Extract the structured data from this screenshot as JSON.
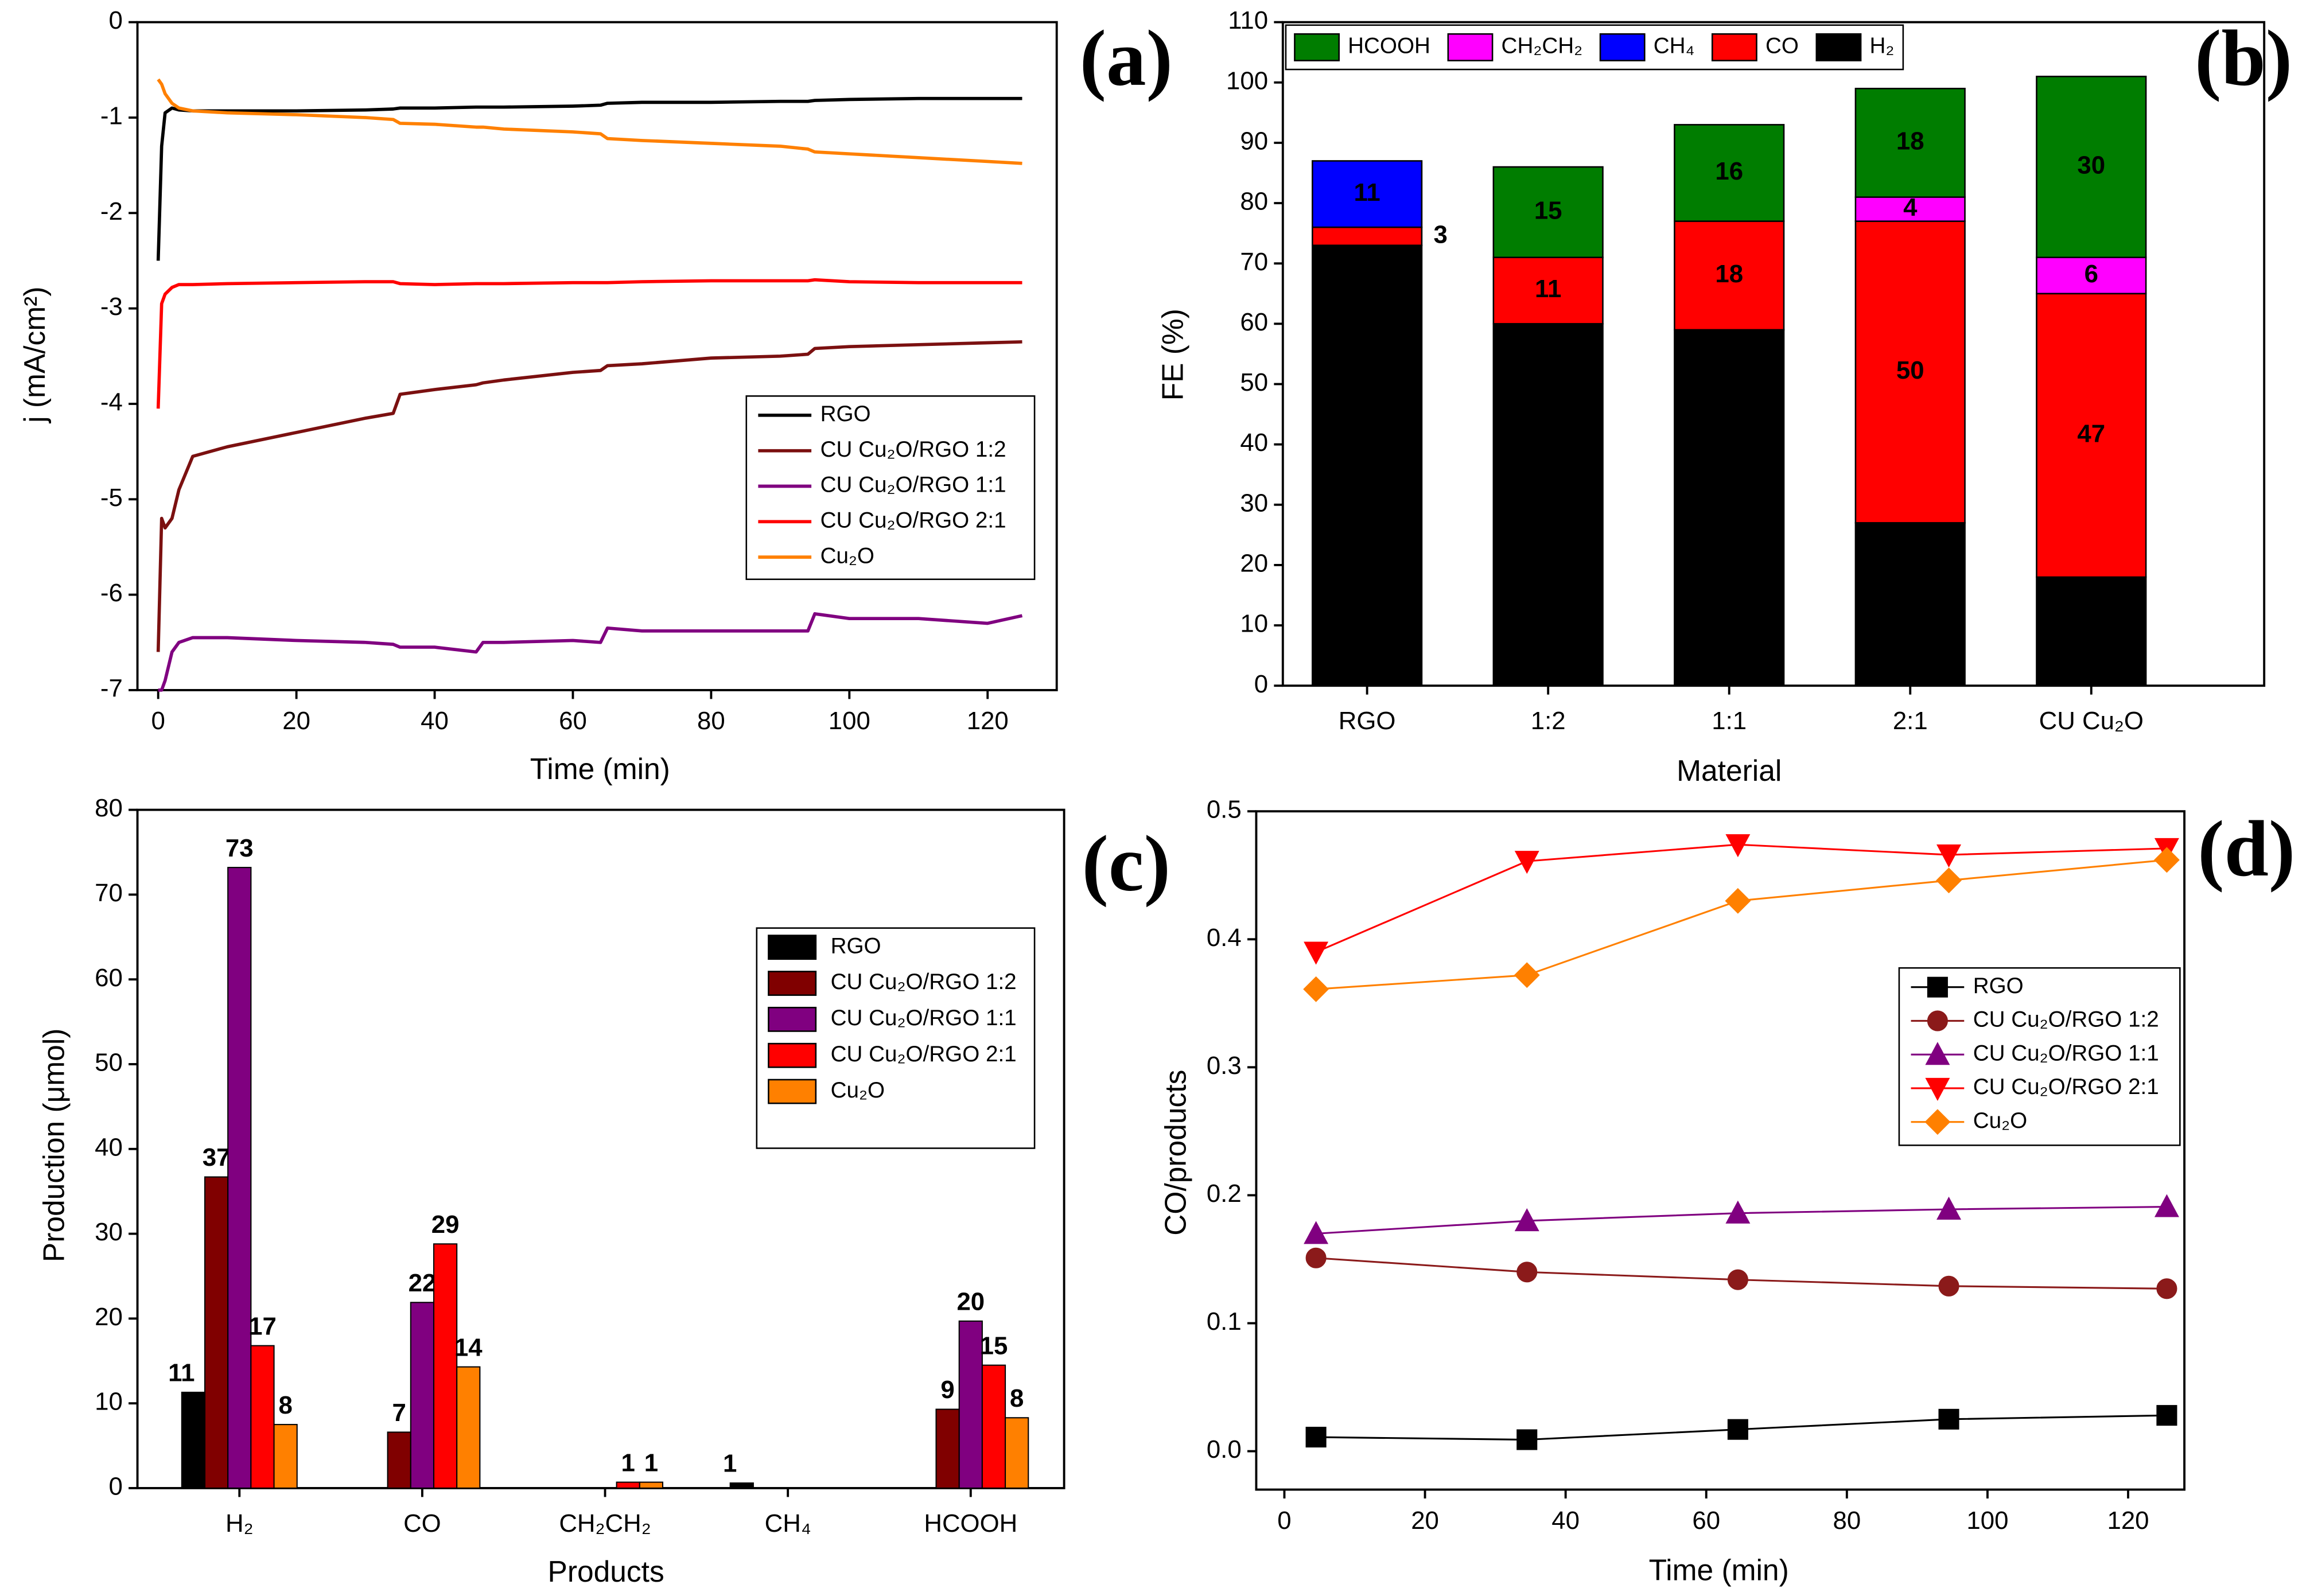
{
  "chart_data": [
    {
      "type": "line",
      "panel_label": "(a)",
      "xlabel": "Time (min)",
      "ylabel": "j (mA/cm²)",
      "x": [
        0,
        0.5,
        1,
        2,
        3,
        5,
        10,
        20,
        30,
        34,
        35,
        40,
        46,
        47,
        50,
        60,
        64,
        65,
        70,
        80,
        90,
        94,
        95,
        100,
        110,
        120,
        125
      ],
      "series": [
        {
          "name": "RGO",
          "color": "#000000",
          "values": [
            -2.5,
            -1.3,
            -0.95,
            -0.9,
            -0.92,
            -0.93,
            -0.93,
            -0.93,
            -0.92,
            -0.91,
            -0.9,
            -0.9,
            -0.89,
            -0.89,
            -0.89,
            -0.88,
            -0.87,
            -0.85,
            -0.84,
            -0.84,
            -0.83,
            -0.83,
            -0.82,
            -0.81,
            -0.8,
            -0.8,
            -0.8
          ]
        },
        {
          "name": "CU Cu₂O/RGO 1:2",
          "color": "#7b1010",
          "values": [
            -6.6,
            -5.2,
            -5.3,
            -5.2,
            -4.9,
            -4.55,
            -4.45,
            -4.3,
            -4.15,
            -4.1,
            -3.9,
            -3.85,
            -3.8,
            -3.78,
            -3.75,
            -3.67,
            -3.65,
            -3.6,
            -3.58,
            -3.52,
            -3.5,
            -3.48,
            -3.42,
            -3.4,
            -3.38,
            -3.36,
            -3.35
          ]
        },
        {
          "name": "CU Cu₂O/RGO 1:1",
          "color": "#800080",
          "values": [
            -7,
            -7,
            -6.9,
            -6.6,
            -6.5,
            -6.45,
            -6.45,
            -6.48,
            -6.5,
            -6.52,
            -6.55,
            -6.55,
            -6.6,
            -6.5,
            -6.5,
            -6.48,
            -6.5,
            -6.35,
            -6.38,
            -6.38,
            -6.38,
            -6.38,
            -6.2,
            -6.25,
            -6.25,
            -6.3,
            -6.22
          ]
        },
        {
          "name": "CU Cu₂O/RGO 2:1",
          "color": "#ff0000",
          "values": [
            -4.05,
            -2.95,
            -2.85,
            -2.78,
            -2.75,
            -2.75,
            -2.74,
            -2.73,
            -2.72,
            -2.72,
            -2.74,
            -2.75,
            -2.74,
            -2.74,
            -2.74,
            -2.73,
            -2.73,
            -2.73,
            -2.72,
            -2.71,
            -2.71,
            -2.71,
            -2.7,
            -2.72,
            -2.73,
            -2.73,
            -2.73
          ]
        },
        {
          "name": "Cu₂O",
          "color": "#ff8000",
          "values": [
            -0.6,
            -0.65,
            -0.75,
            -0.85,
            -0.9,
            -0.93,
            -0.95,
            -0.97,
            -1.0,
            -1.02,
            -1.06,
            -1.07,
            -1.1,
            -1.1,
            -1.12,
            -1.15,
            -1.17,
            -1.22,
            -1.24,
            -1.27,
            -1.3,
            -1.33,
            -1.36,
            -1.38,
            -1.42,
            -1.46,
            -1.48
          ]
        }
      ],
      "xlim": [
        -3,
        130
      ],
      "xticks": [
        0,
        20,
        40,
        60,
        80,
        100,
        120
      ],
      "ylim": [
        -7,
        0
      ],
      "yticks": [
        0,
        -1,
        -2,
        -3,
        -4,
        -5,
        -6,
        -7
      ],
      "legend": "center right"
    },
    {
      "type": "stacked_bar",
      "panel_label": "(b)",
      "xlabel": "Material",
      "ylabel": "FE (%)",
      "categories": [
        "RGO",
        "1:2",
        "1:1",
        "2:1",
        "CU Cu₂O"
      ],
      "series": [
        {
          "name": "H₂",
          "color": "#000000",
          "values": [
            73,
            60,
            59,
            27,
            18
          ]
        },
        {
          "name": "CO",
          "color": "#ff0000",
          "values": [
            3,
            11,
            18,
            50,
            47
          ]
        },
        {
          "name": "CH₄",
          "color": "#0000ff",
          "values": [
            11,
            null,
            null,
            null,
            null
          ]
        },
        {
          "name": "CH₂CH₂",
          "color": "#ff00ff",
          "values": [
            null,
            null,
            null,
            4,
            6
          ]
        },
        {
          "name": "HCOOH",
          "color": "#007d00",
          "values": [
            null,
            15,
            16,
            18,
            30
          ]
        }
      ],
      "ylim": [
        0,
        110
      ],
      "yticks": [
        0,
        10,
        20,
        30,
        40,
        50,
        60,
        70,
        80,
        90,
        100,
        110
      ],
      "legend": "upper left"
    },
    {
      "type": "grouped_bar",
      "panel_label": "(c)",
      "xlabel": "Products",
      "ylabel": "Production (μmol)",
      "categories": [
        "H₂",
        "CO",
        "CH₂CH₂",
        "CH₄",
        "HCOOH"
      ],
      "series": [
        {
          "name": "RGO",
          "color": "#000000",
          "values": [
            11.3,
            null,
            null,
            0.6,
            null
          ],
          "value_labels": [
            "11",
            null,
            null,
            "1",
            null
          ]
        },
        {
          "name": "CU Cu₂O/RGO 1:2",
          "color": "#800000",
          "values": [
            36.7,
            6.6,
            null,
            null,
            9.3
          ],
          "value_labels": [
            "37",
            "7",
            null,
            null,
            "9"
          ]
        },
        {
          "name": "CU Cu₂O/RGO 1:1",
          "color": "#800080",
          "values": [
            73.2,
            21.9,
            null,
            null,
            19.7
          ],
          "value_labels": [
            "73",
            "22",
            null,
            null,
            "20"
          ]
        },
        {
          "name": "CU Cu₂O/RGO 2:1",
          "color": "#ff0000",
          "values": [
            16.8,
            28.8,
            0.7,
            null,
            14.5
          ],
          "value_labels": [
            "17",
            "29",
            "1",
            null,
            "15"
          ]
        },
        {
          "name": "Cu₂O",
          "color": "#ff8000",
          "values": [
            7.5,
            14.3,
            0.7,
            null,
            8.3
          ],
          "value_labels": [
            "8",
            "14",
            "1",
            null,
            "8"
          ]
        }
      ],
      "ylim": [
        0,
        80
      ],
      "yticks": [
        0,
        10,
        20,
        30,
        40,
        50,
        60,
        70,
        80
      ],
      "legend": "center right"
    },
    {
      "type": "line",
      "panel_label": "(d)",
      "xlabel": "Time (min)",
      "ylabel": "CO/products",
      "x": [
        4.5,
        34.5,
        64.5,
        94.5,
        125.5
      ],
      "series": [
        {
          "name": "RGO",
          "color": "#000000",
          "marker": "square",
          "values": [
            0.011,
            0.009,
            0.017,
            0.025,
            0.028
          ]
        },
        {
          "name": "CU Cu₂O/RGO 1:2",
          "color": "#8b1a1a",
          "marker": "circle",
          "values": [
            0.151,
            0.14,
            0.134,
            0.129,
            0.127
          ]
        },
        {
          "name": "CU Cu₂O/RGO 1:1",
          "color": "#800080",
          "marker": "triangle-up",
          "values": [
            0.17,
            0.18,
            0.186,
            0.189,
            0.191
          ]
        },
        {
          "name": "CU Cu₂O/RGO 2:1",
          "color": "#ff0000",
          "marker": "triangle-down",
          "values": [
            0.39,
            0.461,
            0.474,
            0.466,
            0.471
          ]
        },
        {
          "name": "Cu₂O",
          "color": "#ff8000",
          "marker": "diamond",
          "values": [
            0.361,
            0.372,
            0.43,
            0.446,
            0.462
          ]
        }
      ],
      "xlim": [
        -4,
        128
      ],
      "xticks": [
        0,
        20,
        40,
        60,
        80,
        100,
        120
      ],
      "ylim": [
        -0.03,
        0.5
      ],
      "yticks": [
        {
          "value": 0,
          "label": "0.0"
        },
        0.1,
        0.2,
        0.3,
        0.4,
        0.5
      ],
      "legend": "center right"
    }
  ]
}
